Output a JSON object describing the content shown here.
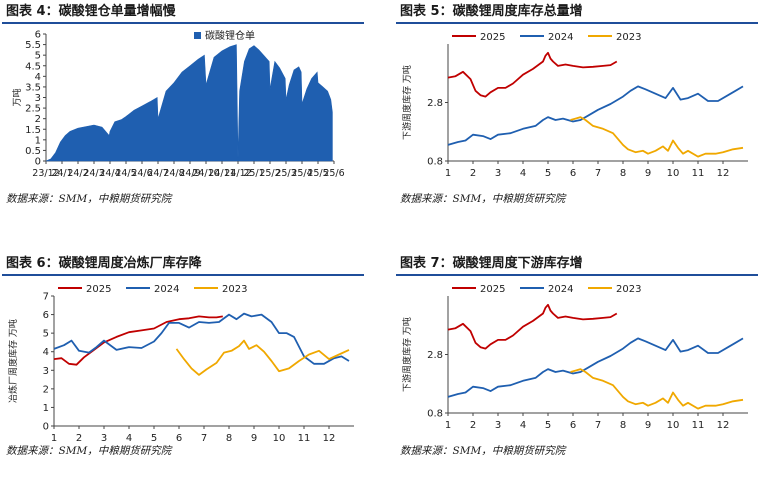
{
  "panels": [
    {
      "title": "图表 4：碳酸锂仓单量增幅慢",
      "source": "数据来源：SMM，中粮期货研究院"
    },
    {
      "title": "图表 5：碳酸锂周度库存总量增",
      "source": "数据来源：SMM，中粮期货研究院"
    },
    {
      "title": "图表 6：碳酸锂周度冶炼厂库存降",
      "source": "数据来源：SMM，中粮期货研究院"
    },
    {
      "title": "图表 7：碳酸锂周度下游库存增",
      "source": "数据来源：SMM，中粮期货研究院"
    }
  ],
  "colors": {
    "blue": "#1f5fb0",
    "red": "#c00000",
    "gold": "#f0a800",
    "title_rule": "#1f4e9a"
  },
  "chart_data": [
    {
      "type": "area",
      "title": "",
      "ylabel": "万吨",
      "ylim": [
        0,
        6
      ],
      "yticks": [
        0,
        0.5,
        1,
        1.5,
        2,
        2.5,
        3,
        3.5,
        4,
        4.5,
        5,
        5.5,
        6
      ],
      "xticks": [
        "23/12",
        "24/1",
        "24/2",
        "24/3",
        "24/4",
        "24/5",
        "24/6",
        "24/7",
        "24/8",
        "24/9",
        "24/10",
        "24/11",
        "24/12",
        "25/1",
        "25/2",
        "25/3",
        "25/4",
        "25/5",
        "25/6"
      ],
      "grid": false,
      "legend": "top-right",
      "series": [
        {
          "name": "碳酸锂仓单",
          "x": [
            0,
            0.3,
            0.6,
            0.9,
            1.2,
            1.5,
            2,
            3,
            3.5,
            3.95,
            4.0,
            4.3,
            4.7,
            5,
            5.5,
            6,
            6.5,
            6.95,
            7.0,
            7.5,
            8,
            8.5,
            9,
            9.5,
            9.9,
            10.0,
            10.5,
            11,
            11.5,
            11.9,
            12.0,
            12.1,
            12.4,
            12.7,
            13,
            13.3,
            13.6,
            13.95,
            14.0,
            14.3,
            14.6,
            14.95,
            15.0,
            15.2,
            15.5,
            15.8,
            15.95,
            16.0,
            16.3,
            16.6,
            16.95,
            17.0,
            17.3,
            17.6,
            17.8,
            17.9
          ],
          "values": [
            0,
            0.1,
            0.4,
            0.9,
            1.2,
            1.4,
            1.55,
            1.7,
            1.6,
            1.2,
            1.4,
            1.85,
            1.95,
            2.1,
            2.4,
            2.6,
            2.8,
            3.0,
            2.0,
            3.3,
            3.7,
            4.2,
            4.5,
            4.8,
            5.0,
            3.6,
            4.9,
            5.2,
            5.4,
            5.5,
            0.15,
            3.3,
            4.7,
            5.3,
            5.45,
            5.25,
            5.0,
            4.7,
            3.4,
            4.7,
            4.4,
            3.9,
            2.9,
            3.6,
            4.3,
            4.45,
            4.2,
            2.7,
            3.4,
            3.9,
            4.2,
            3.7,
            3.5,
            3.3,
            2.9,
            2.3
          ]
        }
      ]
    },
    {
      "type": "line",
      "title": "",
      "ylabel": "下游周度库存 万吨",
      "ylim": [
        0.8,
        4.8
      ],
      "yticks": [
        0.8,
        2.8
      ],
      "xticks": [
        1,
        2,
        3,
        4,
        5,
        6,
        7,
        8,
        9,
        10,
        11,
        12
      ],
      "grid": false,
      "legend": "top",
      "series": [
        {
          "name": "2025",
          "x": [
            1,
            1.3,
            1.6,
            1.9,
            2.1,
            2.3,
            2.5,
            2.7,
            3.0,
            3.3,
            3.6,
            4.0,
            4.4,
            4.8,
            4.9,
            5.0,
            5.1,
            5.2,
            5.4,
            5.7,
            6.0,
            6.4,
            6.8,
            7.2,
            7.5,
            7.75
          ],
          "values": [
            3.65,
            3.7,
            3.85,
            3.6,
            3.2,
            3.05,
            3.0,
            3.15,
            3.3,
            3.3,
            3.45,
            3.75,
            3.95,
            4.2,
            4.4,
            4.5,
            4.3,
            4.2,
            4.05,
            4.1,
            4.05,
            4.0,
            4.02,
            4.05,
            4.08,
            4.2
          ]
        },
        {
          "name": "2024",
          "x": [
            1,
            1.4,
            1.7,
            2.0,
            2.4,
            2.7,
            3.0,
            3.5,
            4.0,
            4.5,
            4.8,
            5.0,
            5.3,
            5.6,
            6.0,
            6.3,
            6.6,
            7.0,
            7.5,
            8.0,
            8.3,
            8.6,
            8.9,
            9.3,
            9.7,
            10.0,
            10.3,
            10.6,
            11.0,
            11.4,
            11.8,
            12.2,
            12.5,
            12.8
          ],
          "values": [
            1.35,
            1.45,
            1.5,
            1.7,
            1.65,
            1.55,
            1.7,
            1.75,
            1.9,
            2.0,
            2.2,
            2.3,
            2.2,
            2.25,
            2.15,
            2.2,
            2.35,
            2.55,
            2.75,
            3.0,
            3.2,
            3.35,
            3.25,
            3.1,
            2.95,
            3.3,
            2.9,
            2.95,
            3.1,
            2.85,
            2.85,
            3.05,
            3.2,
            3.35
          ]
        },
        {
          "name": "2023",
          "x": [
            5.9,
            6.1,
            6.3,
            6.5,
            6.8,
            7.2,
            7.6,
            8.0,
            8.2,
            8.5,
            8.8,
            9.0,
            9.3,
            9.6,
            9.8,
            10.0,
            10.2,
            10.4,
            10.6,
            11.0,
            11.3,
            11.7,
            12.0,
            12.4,
            12.8
          ],
          "values": [
            2.2,
            2.25,
            2.3,
            2.2,
            2.0,
            1.9,
            1.75,
            1.35,
            1.2,
            1.1,
            1.15,
            1.05,
            1.15,
            1.3,
            1.15,
            1.5,
            1.25,
            1.05,
            1.15,
            0.95,
            1.05,
            1.05,
            1.1,
            1.2,
            1.25
          ]
        }
      ]
    },
    {
      "type": "line",
      "title": "",
      "ylabel": "冶炼厂周度库存 万吨",
      "ylim": [
        0,
        7
      ],
      "yticks": [
        0,
        1,
        2,
        3,
        4,
        5,
        6,
        7
      ],
      "xticks": [
        1,
        2,
        3,
        4,
        5,
        6,
        7,
        8,
        9,
        10,
        11,
        12
      ],
      "grid": false,
      "legend": "top",
      "series": [
        {
          "name": "2025",
          "x": [
            1,
            1.3,
            1.6,
            1.9,
            2.2,
            2.6,
            3.0,
            3.5,
            4.0,
            4.5,
            5.0,
            5.5,
            6.0,
            6.4,
            6.8,
            7.2,
            7.5,
            7.75
          ],
          "values": [
            3.6,
            3.65,
            3.35,
            3.3,
            3.7,
            4.1,
            4.5,
            4.8,
            5.05,
            5.15,
            5.25,
            5.6,
            5.75,
            5.8,
            5.9,
            5.85,
            5.85,
            5.9
          ]
        },
        {
          "name": "2024",
          "x": [
            1,
            1.4,
            1.7,
            2.0,
            2.4,
            2.7,
            3.0,
            3.5,
            4.0,
            4.5,
            5.0,
            5.3,
            5.6,
            6.0,
            6.4,
            6.8,
            7.2,
            7.6,
            8.0,
            8.3,
            8.6,
            8.9,
            9.3,
            9.7,
            10.0,
            10.3,
            10.6,
            11.0,
            11.4,
            11.8,
            12.2,
            12.5,
            12.8
          ],
          "values": [
            4.15,
            4.35,
            4.6,
            4.05,
            3.95,
            4.25,
            4.6,
            4.1,
            4.25,
            4.2,
            4.55,
            5.0,
            5.55,
            5.55,
            5.3,
            5.6,
            5.55,
            5.6,
            6.0,
            5.75,
            6.05,
            5.9,
            6.0,
            5.6,
            5.0,
            5.0,
            4.8,
            3.75,
            3.35,
            3.35,
            3.65,
            3.75,
            3.5
          ]
        },
        {
          "name": "2023",
          "x": [
            5.9,
            6.2,
            6.5,
            6.8,
            7.1,
            7.5,
            7.8,
            8.1,
            8.4,
            8.6,
            8.8,
            9.1,
            9.4,
            9.7,
            10.0,
            10.4,
            10.8,
            11.2,
            11.6,
            12.0,
            12.4,
            12.8
          ],
          "values": [
            4.15,
            3.6,
            3.1,
            2.75,
            3.05,
            3.4,
            3.95,
            4.05,
            4.3,
            4.6,
            4.15,
            4.35,
            4.0,
            3.5,
            2.95,
            3.1,
            3.5,
            3.85,
            4.05,
            3.6,
            3.85,
            4.1
          ]
        }
      ]
    },
    {
      "type": "line",
      "title": "",
      "ylabel": "下游周度库存 万吨",
      "ylim": [
        0.8,
        4.8
      ],
      "yticks": [
        0.8,
        2.8
      ],
      "xticks": [
        1,
        2,
        3,
        4,
        5,
        6,
        7,
        8,
        9,
        10,
        11,
        12
      ],
      "grid": false,
      "legend": "top",
      "series": [
        {
          "name": "2025",
          "x": [
            1,
            1.3,
            1.6,
            1.9,
            2.1,
            2.3,
            2.5,
            2.7,
            3.0,
            3.3,
            3.6,
            4.0,
            4.4,
            4.8,
            4.9,
            5.0,
            5.1,
            5.2,
            5.4,
            5.7,
            6.0,
            6.4,
            6.8,
            7.2,
            7.5,
            7.75
          ],
          "values": [
            3.65,
            3.7,
            3.85,
            3.6,
            3.2,
            3.05,
            3.0,
            3.15,
            3.3,
            3.3,
            3.45,
            3.75,
            3.95,
            4.2,
            4.4,
            4.5,
            4.3,
            4.2,
            4.05,
            4.1,
            4.05,
            4.0,
            4.02,
            4.05,
            4.08,
            4.2
          ]
        },
        {
          "name": "2024",
          "x": [
            1,
            1.4,
            1.7,
            2.0,
            2.4,
            2.7,
            3.0,
            3.5,
            4.0,
            4.5,
            4.8,
            5.0,
            5.3,
            5.6,
            6.0,
            6.3,
            6.6,
            7.0,
            7.5,
            8.0,
            8.3,
            8.6,
            8.9,
            9.3,
            9.7,
            10.0,
            10.3,
            10.6,
            11.0,
            11.4,
            11.8,
            12.2,
            12.5,
            12.8
          ],
          "values": [
            1.35,
            1.45,
            1.5,
            1.7,
            1.65,
            1.55,
            1.7,
            1.75,
            1.9,
            2.0,
            2.2,
            2.3,
            2.2,
            2.25,
            2.15,
            2.2,
            2.35,
            2.55,
            2.75,
            3.0,
            3.2,
            3.35,
            3.25,
            3.1,
            2.95,
            3.3,
            2.9,
            2.95,
            3.1,
            2.85,
            2.85,
            3.05,
            3.2,
            3.35
          ]
        },
        {
          "name": "2023",
          "x": [
            5.9,
            6.1,
            6.3,
            6.5,
            6.8,
            7.2,
            7.6,
            8.0,
            8.2,
            8.5,
            8.8,
            9.0,
            9.3,
            9.6,
            9.8,
            10.0,
            10.2,
            10.4,
            10.6,
            11.0,
            11.3,
            11.7,
            12.0,
            12.4,
            12.8
          ],
          "values": [
            2.2,
            2.25,
            2.3,
            2.2,
            2.0,
            1.9,
            1.75,
            1.35,
            1.2,
            1.1,
            1.15,
            1.05,
            1.15,
            1.3,
            1.15,
            1.5,
            1.25,
            1.05,
            1.15,
            0.95,
            1.05,
            1.05,
            1.1,
            1.2,
            1.25
          ]
        }
      ]
    }
  ]
}
